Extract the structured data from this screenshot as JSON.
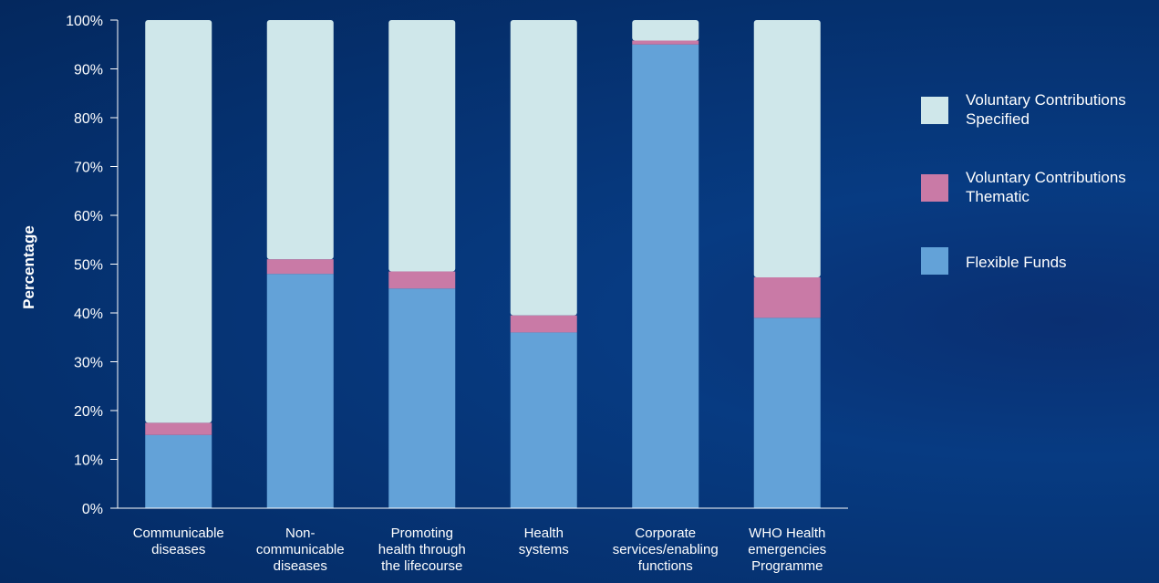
{
  "chart_data": {
    "type": "bar",
    "stacked": true,
    "percent_stacked": true,
    "title": "",
    "xlabel": "",
    "ylabel": "Percentage",
    "ylim": [
      0,
      100
    ],
    "yticks": [
      "0%",
      "10%",
      "20%",
      "30%",
      "40%",
      "50%",
      "60%",
      "70%",
      "80%",
      "90%",
      "100%"
    ],
    "categories": [
      [
        "Communicable",
        "diseases"
      ],
      [
        "Non-",
        "communicable",
        "diseases"
      ],
      [
        "Promoting",
        "health through",
        "the lifecourse"
      ],
      [
        "Health",
        "systems"
      ],
      [
        "Corporate",
        "services/enabling",
        "functions"
      ],
      [
        "WHO Health",
        "emergencies",
        "Programme"
      ]
    ],
    "series": [
      {
        "name": "Flexible Funds",
        "color": "#63a2d8",
        "values": [
          15,
          48,
          45,
          36,
          95,
          39
        ]
      },
      {
        "name": "Voluntary Contributions Thematic",
        "color": "#c97aa6",
        "values": [
          2.5,
          3,
          3.5,
          3.5,
          0.8,
          8.3
        ]
      },
      {
        "name": "Voluntary Contributions Specified",
        "color": "#cfe7ea",
        "values": [
          82.5,
          49,
          51.5,
          60.5,
          4.2,
          52.7
        ]
      }
    ],
    "legend": {
      "position": "right",
      "entries": [
        {
          "lines": [
            "Voluntary Contributions",
            "Specified"
          ],
          "color": "#cfe7ea"
        },
        {
          "lines": [
            "Voluntary Contributions",
            "Thematic"
          ],
          "color": "#c97aa6"
        },
        {
          "lines": [
            "Flexible Funds"
          ],
          "color": "#63a2d8"
        }
      ]
    },
    "grid": false
  }
}
